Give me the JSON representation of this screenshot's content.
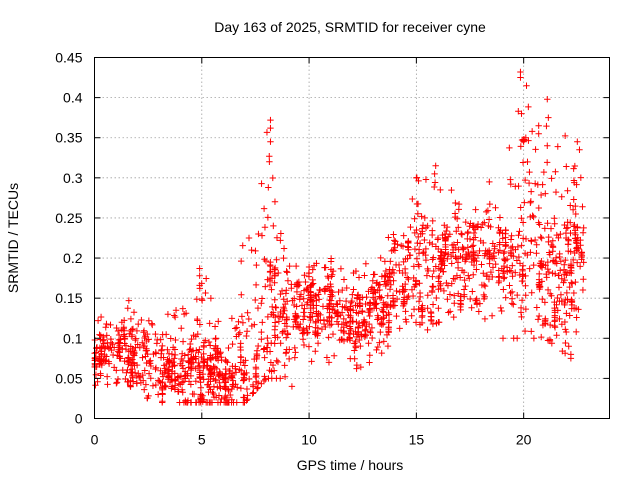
{
  "chart_data": {
    "type": "scatter",
    "title": "Day 163 of 2025, SRMTID for receiver cyne",
    "xlabel": "GPS time / hours",
    "ylabel": "SRMTID / TECUs",
    "xlim": [
      0,
      24
    ],
    "ylim": [
      0,
      0.45
    ],
    "x_ticks": [
      0,
      5,
      10,
      15,
      20
    ],
    "x_tick_labels": [
      "0",
      "5",
      "10",
      "15",
      "20"
    ],
    "y_ticks": [
      0,
      0.05,
      0.1,
      0.15,
      0.2,
      0.25,
      0.3,
      0.35,
      0.4,
      0.45
    ],
    "y_tick_labels": [
      "0",
      "0.05",
      "0.1",
      "0.15",
      "0.2",
      "0.25",
      "0.3",
      "0.35",
      "0.4",
      "0.45"
    ],
    "grid": true,
    "marker": "plus",
    "colors": {
      "series": "#ff0000",
      "grid": "#a0a0a0",
      "axes": "#000000"
    },
    "trend_profile": {
      "hours": [
        0,
        1,
        2,
        3,
        4,
        5,
        6,
        7,
        8,
        9,
        10,
        11,
        12,
        13,
        14,
        15,
        16,
        17,
        18,
        19,
        20,
        21,
        22,
        22.8
      ],
      "median": [
        0.08,
        0.085,
        0.075,
        0.065,
        0.06,
        0.065,
        0.05,
        0.055,
        0.12,
        0.14,
        0.14,
        0.14,
        0.12,
        0.14,
        0.17,
        0.19,
        0.19,
        0.2,
        0.2,
        0.2,
        0.21,
        0.19,
        0.18,
        0.22
      ],
      "lower": [
        0.04,
        0.04,
        0.03,
        0.02,
        0.02,
        0.02,
        0.02,
        0.02,
        0.05,
        0.05,
        0.07,
        0.07,
        0.06,
        0.07,
        0.1,
        0.1,
        0.12,
        0.12,
        0.13,
        0.1,
        0.1,
        0.1,
        0.08,
        0.13
      ],
      "upper": [
        0.13,
        0.13,
        0.15,
        0.13,
        0.13,
        0.19,
        0.12,
        0.23,
        0.37,
        0.19,
        0.19,
        0.2,
        0.18,
        0.2,
        0.25,
        0.3,
        0.31,
        0.27,
        0.28,
        0.3,
        0.43,
        0.4,
        0.35,
        0.29
      ]
    },
    "notable_points": [
      {
        "x": 8.2,
        "y": 0.372
      },
      {
        "x": 8.2,
        "y": 0.362
      },
      {
        "x": 8.2,
        "y": 0.345
      },
      {
        "x": 8.15,
        "y": 0.32
      },
      {
        "x": 8.1,
        "y": 0.288
      },
      {
        "x": 7.2,
        "y": 0.225
      },
      {
        "x": 4.9,
        "y": 0.187
      },
      {
        "x": 4.9,
        "y": 0.178
      },
      {
        "x": 4.9,
        "y": 0.166
      },
      {
        "x": 1.6,
        "y": 0.147
      },
      {
        "x": 3.8,
        "y": 0.135
      },
      {
        "x": 19.85,
        "y": 0.432
      },
      {
        "x": 19.85,
        "y": 0.425
      },
      {
        "x": 19.75,
        "y": 0.383
      },
      {
        "x": 19.9,
        "y": 0.38
      },
      {
        "x": 20.1,
        "y": 0.35
      },
      {
        "x": 20.0,
        "y": 0.345
      },
      {
        "x": 20.7,
        "y": 0.365
      },
      {
        "x": 20.7,
        "y": 0.355
      },
      {
        "x": 21.1,
        "y": 0.398
      },
      {
        "x": 21.15,
        "y": 0.375
      },
      {
        "x": 21.1,
        "y": 0.34
      },
      {
        "x": 22.5,
        "y": 0.345
      },
      {
        "x": 22.6,
        "y": 0.335
      },
      {
        "x": 15.0,
        "y": 0.3
      },
      {
        "x": 15.9,
        "y": 0.315
      },
      {
        "x": 15.85,
        "y": 0.305
      },
      {
        "x": 18.4,
        "y": 0.295
      },
      {
        "x": 22.2,
        "y": 0.08
      },
      {
        "x": 22.2,
        "y": 0.075
      },
      {
        "x": 22.1,
        "y": 0.09
      },
      {
        "x": 9.2,
        "y": 0.04
      }
    ],
    "random_seed": 163,
    "point_count": 1450
  }
}
